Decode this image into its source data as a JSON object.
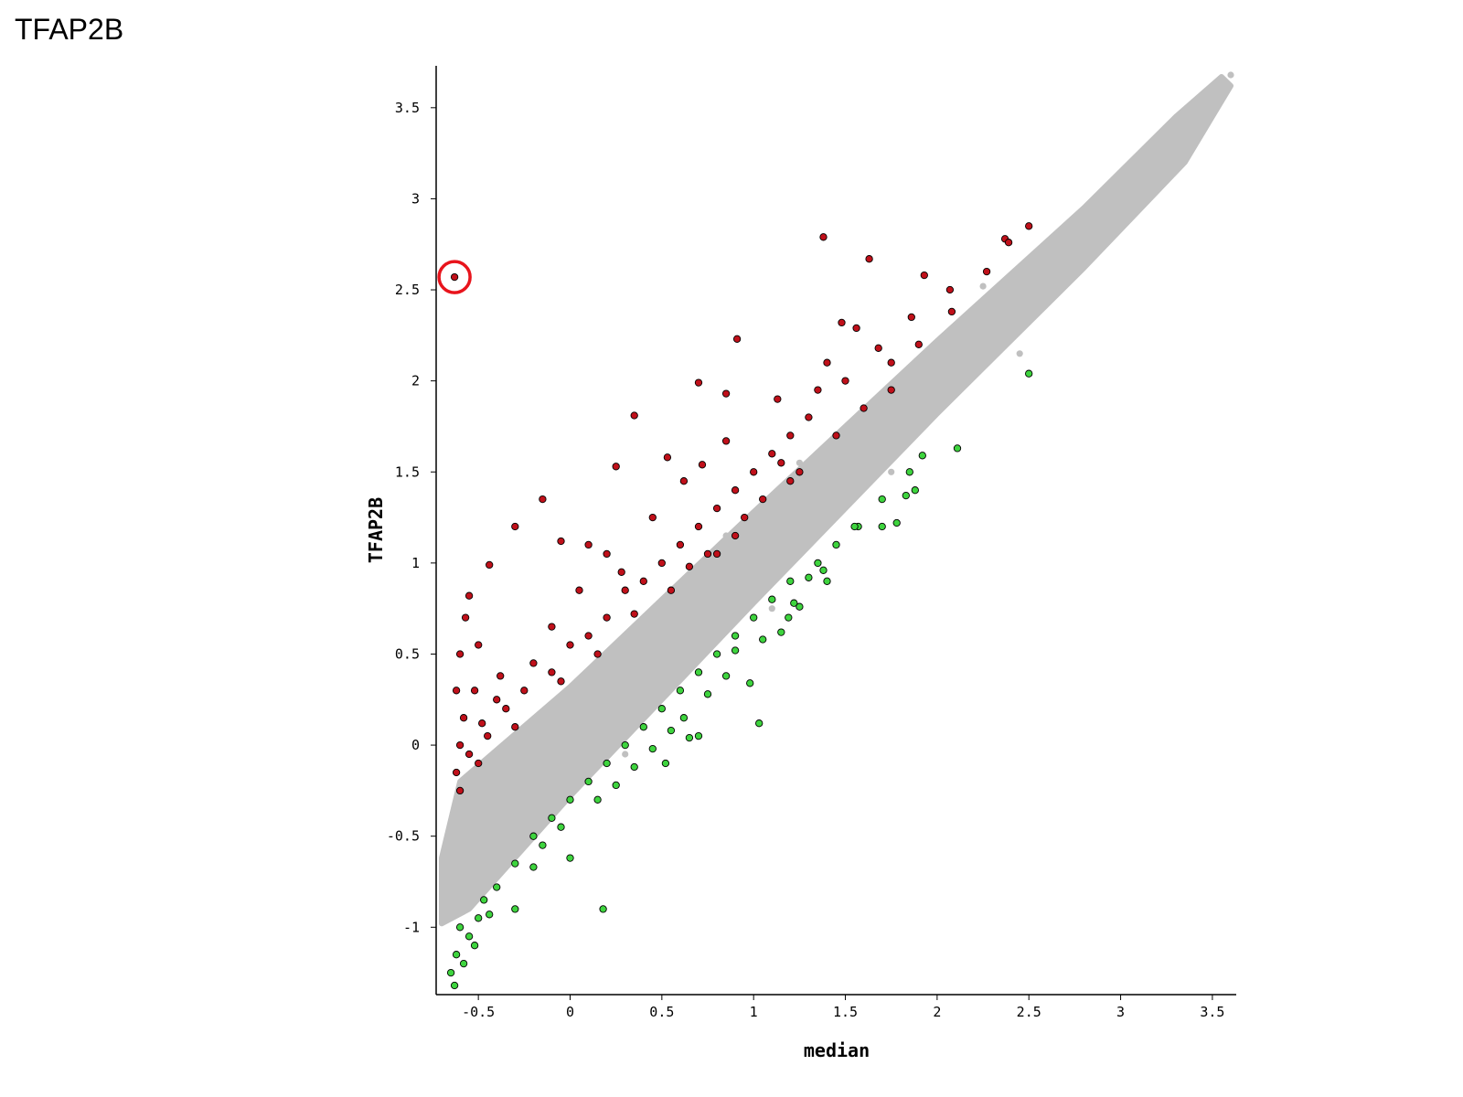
{
  "page": {
    "title": "TFAP2B"
  },
  "chart_data": {
    "type": "scatter",
    "title": "",
    "xlabel": "median",
    "ylabel": "TFAP2B",
    "xlim": [
      -0.73,
      3.63
    ],
    "ylim": [
      -1.37,
      3.73
    ],
    "x_ticks": [
      -0.5,
      0,
      0.5,
      1,
      1.5,
      2,
      2.5,
      3,
      3.5
    ],
    "x_tick_labels": [
      "-0.5",
      "0",
      "0.5",
      "1",
      "1.5",
      "2",
      "2.5",
      "3",
      "3.5"
    ],
    "y_ticks": [
      -1,
      -0.5,
      0,
      0.5,
      1,
      1.5,
      2,
      2.5,
      3,
      3.5
    ],
    "y_tick_labels": [
      "-1",
      "-0.5",
      "0",
      "0.5",
      "1",
      "1.5",
      "2",
      "2.5",
      "3",
      "3.5"
    ],
    "grid": false,
    "colors": {
      "up": "#c0101a",
      "down": "#3ed43e",
      "neutral": "#c0c0c0",
      "highlight": "#e8141c"
    },
    "highlighted_point": {
      "x": -0.63,
      "y": 2.57
    },
    "series": [
      {
        "role": "neutral",
        "points": [
          [
            -0.65,
            -0.95
          ],
          [
            -0.6,
            -0.6
          ],
          [
            -0.55,
            -0.72
          ],
          [
            -0.5,
            -0.3
          ],
          [
            -0.45,
            -0.48
          ],
          [
            -0.4,
            -0.1
          ],
          [
            -0.3,
            -0.2
          ],
          [
            -0.2,
            0.05
          ],
          [
            -0.1,
            -0.05
          ],
          [
            0,
            0.12
          ],
          [
            0.1,
            0.08
          ],
          [
            0.2,
            0.3
          ],
          [
            0.3,
            0.25
          ],
          [
            0.4,
            0.5
          ],
          [
            0.5,
            0.45
          ],
          [
            0.6,
            0.68
          ],
          [
            0.7,
            0.62
          ],
          [
            0.8,
            0.85
          ],
          [
            0.9,
            0.82
          ],
          [
            1,
            1.05
          ],
          [
            1.1,
            1.0
          ],
          [
            1.2,
            1.22
          ],
          [
            1.3,
            1.2
          ],
          [
            1.4,
            1.42
          ],
          [
            1.5,
            1.4
          ],
          [
            1.6,
            1.62
          ],
          [
            1.7,
            1.6
          ],
          [
            1.8,
            1.8
          ],
          [
            1.9,
            1.78
          ],
          [
            2,
            2.0
          ],
          [
            2.1,
            1.98
          ],
          [
            2.2,
            2.2
          ],
          [
            2.3,
            2.2
          ],
          [
            2.4,
            2.4
          ],
          [
            2.5,
            2.42
          ],
          [
            2.6,
            2.6
          ],
          [
            2.7,
            2.62
          ],
          [
            2.8,
            2.8
          ],
          [
            2.9,
            2.85
          ],
          [
            3,
            3.0
          ],
          [
            3.1,
            3.05
          ],
          [
            3.2,
            3.2
          ],
          [
            3.3,
            3.25
          ],
          [
            3.45,
            3.4
          ],
          [
            3.52,
            3.62
          ],
          [
            3.6,
            3.68
          ],
          [
            3.4,
            3.5
          ],
          [
            2.45,
            2.15
          ],
          [
            1.75,
            1.5
          ],
          [
            2.25,
            2.52
          ],
          [
            3.25,
            3.35
          ],
          [
            1.1,
            0.75
          ],
          [
            1.25,
            1.55
          ],
          [
            0.3,
            -0.05
          ],
          [
            0.85,
            1.15
          ],
          [
            -0.62,
            -0.55
          ],
          [
            -0.66,
            -0.8
          ],
          [
            -0.58,
            -0.35
          ]
        ]
      },
      {
        "role": "up",
        "points": [
          [
            -0.63,
            2.57
          ],
          [
            1.38,
            2.79
          ],
          [
            1.63,
            2.67
          ],
          [
            1.93,
            2.58
          ],
          [
            2.07,
            2.5
          ],
          [
            2.37,
            2.78
          ],
          [
            2.39,
            2.76
          ],
          [
            2.5,
            2.85
          ],
          [
            2.27,
            2.6
          ],
          [
            2.08,
            2.38
          ],
          [
            0.91,
            2.23
          ],
          [
            1.48,
            2.32
          ],
          [
            1.56,
            2.29
          ],
          [
            1.86,
            2.35
          ],
          [
            1.68,
            2.18
          ],
          [
            1.4,
            2.1
          ],
          [
            0.7,
            1.99
          ],
          [
            0.85,
            1.93
          ],
          [
            0.35,
            1.81
          ],
          [
            0.25,
            1.53
          ],
          [
            0.53,
            1.58
          ],
          [
            0.72,
            1.54
          ],
          [
            0.85,
            1.67
          ],
          [
            1.13,
            1.9
          ],
          [
            1.35,
            1.95
          ],
          [
            1.5,
            2.0
          ],
          [
            1.75,
            2.1
          ],
          [
            1.9,
            2.2
          ],
          [
            -0.3,
            1.2
          ],
          [
            -0.15,
            1.35
          ],
          [
            -0.05,
            1.12
          ],
          [
            0.1,
            1.1
          ],
          [
            0.05,
            0.85
          ],
          [
            -0.44,
            0.99
          ],
          [
            -0.55,
            0.82
          ],
          [
            -0.57,
            0.7
          ],
          [
            -0.5,
            0.55
          ],
          [
            -0.6,
            0.5
          ],
          [
            -0.62,
            0.3
          ],
          [
            -0.58,
            0.15
          ],
          [
            -0.6,
            0.0
          ],
          [
            -0.62,
            -0.15
          ],
          [
            -0.6,
            -0.25
          ],
          [
            -0.5,
            -0.1
          ],
          [
            -0.45,
            0.05
          ],
          [
            -0.35,
            0.2
          ],
          [
            -0.25,
            0.3
          ],
          [
            -0.2,
            0.45
          ],
          [
            -0.1,
            0.4
          ],
          [
            0,
            0.55
          ],
          [
            0.1,
            0.6
          ],
          [
            0.2,
            0.7
          ],
          [
            0.3,
            0.85
          ],
          [
            0.4,
            0.9
          ],
          [
            0.5,
            1.0
          ],
          [
            0.6,
            1.1
          ],
          [
            0.7,
            1.2
          ],
          [
            0.8,
            1.3
          ],
          [
            0.9,
            1.4
          ],
          [
            1.0,
            1.5
          ],
          [
            1.1,
            1.6
          ],
          [
            1.2,
            1.7
          ],
          [
            1.3,
            1.8
          ],
          [
            1.15,
            1.55
          ],
          [
            0.95,
            1.25
          ],
          [
            0.75,
            1.05
          ],
          [
            0.55,
            0.85
          ],
          [
            0.35,
            0.72
          ],
          [
            0.15,
            0.5
          ],
          [
            -0.05,
            0.35
          ],
          [
            -0.3,
            0.1
          ],
          [
            -0.4,
            0.25
          ],
          [
            -0.52,
            0.3
          ],
          [
            0.45,
            1.25
          ],
          [
            0.62,
            1.45
          ],
          [
            0.2,
            1.05
          ],
          [
            -0.1,
            0.65
          ],
          [
            0.8,
            1.05
          ],
          [
            1.05,
            1.35
          ],
          [
            1.25,
            1.5
          ],
          [
            1.45,
            1.7
          ],
          [
            1.6,
            1.85
          ],
          [
            1.75,
            1.95
          ],
          [
            -0.55,
            -0.05
          ],
          [
            -0.48,
            0.12
          ],
          [
            -0.38,
            0.38
          ],
          [
            0.28,
            0.95
          ],
          [
            0.65,
            0.98
          ],
          [
            0.9,
            1.15
          ],
          [
            1.2,
            1.45
          ]
        ]
      },
      {
        "role": "down",
        "points": [
          [
            2.5,
            2.04
          ],
          [
            2.11,
            1.63
          ],
          [
            1.92,
            1.59
          ],
          [
            1.88,
            1.4
          ],
          [
            1.83,
            1.37
          ],
          [
            1.78,
            1.22
          ],
          [
            1.7,
            1.2
          ],
          [
            1.57,
            1.2
          ],
          [
            1.38,
            0.96
          ],
          [
            1.3,
            0.92
          ],
          [
            1.22,
            0.78
          ],
          [
            1.19,
            0.7
          ],
          [
            1.15,
            0.62
          ],
          [
            1.03,
            0.12
          ],
          [
            0.98,
            0.34
          ],
          [
            0.9,
            0.52
          ],
          [
            0.7,
            0.05
          ],
          [
            0.65,
            0.04
          ],
          [
            0.52,
            -0.1
          ],
          [
            0.18,
            -0.9
          ],
          [
            0.0,
            -0.62
          ],
          [
            -0.2,
            -0.67
          ],
          [
            -0.3,
            -0.9
          ],
          [
            -0.44,
            -0.93
          ],
          [
            -0.55,
            -1.05
          ],
          [
            -0.62,
            -1.15
          ],
          [
            -0.65,
            -1.25
          ],
          [
            -0.63,
            -1.32
          ],
          [
            -0.6,
            -1.0
          ],
          [
            -0.5,
            -0.95
          ],
          [
            -0.4,
            -0.78
          ],
          [
            -0.3,
            -0.65
          ],
          [
            -0.2,
            -0.5
          ],
          [
            -0.1,
            -0.4
          ],
          [
            0.0,
            -0.3
          ],
          [
            0.1,
            -0.2
          ],
          [
            0.2,
            -0.1
          ],
          [
            0.3,
            0.0
          ],
          [
            0.4,
            0.1
          ],
          [
            0.5,
            0.2
          ],
          [
            0.6,
            0.3
          ],
          [
            0.7,
            0.4
          ],
          [
            0.8,
            0.5
          ],
          [
            0.9,
            0.6
          ],
          [
            1.0,
            0.7
          ],
          [
            1.1,
            0.8
          ],
          [
            1.2,
            0.9
          ],
          [
            1.35,
            1.0
          ],
          [
            1.45,
            1.1
          ],
          [
            1.55,
            1.2
          ],
          [
            1.7,
            1.35
          ],
          [
            1.85,
            1.5
          ],
          [
            0.25,
            -0.22
          ],
          [
            0.35,
            -0.12
          ],
          [
            0.45,
            -0.02
          ],
          [
            0.55,
            0.08
          ],
          [
            0.75,
            0.28
          ],
          [
            0.85,
            0.38
          ],
          [
            1.05,
            0.58
          ],
          [
            1.25,
            0.76
          ],
          [
            -0.05,
            -0.45
          ],
          [
            -0.15,
            -0.55
          ],
          [
            -0.52,
            -1.1
          ],
          [
            -0.58,
            -1.2
          ],
          [
            -0.47,
            -0.85
          ],
          [
            0.15,
            -0.3
          ],
          [
            0.62,
            0.15
          ],
          [
            1.4,
            0.9
          ]
        ]
      }
    ]
  }
}
